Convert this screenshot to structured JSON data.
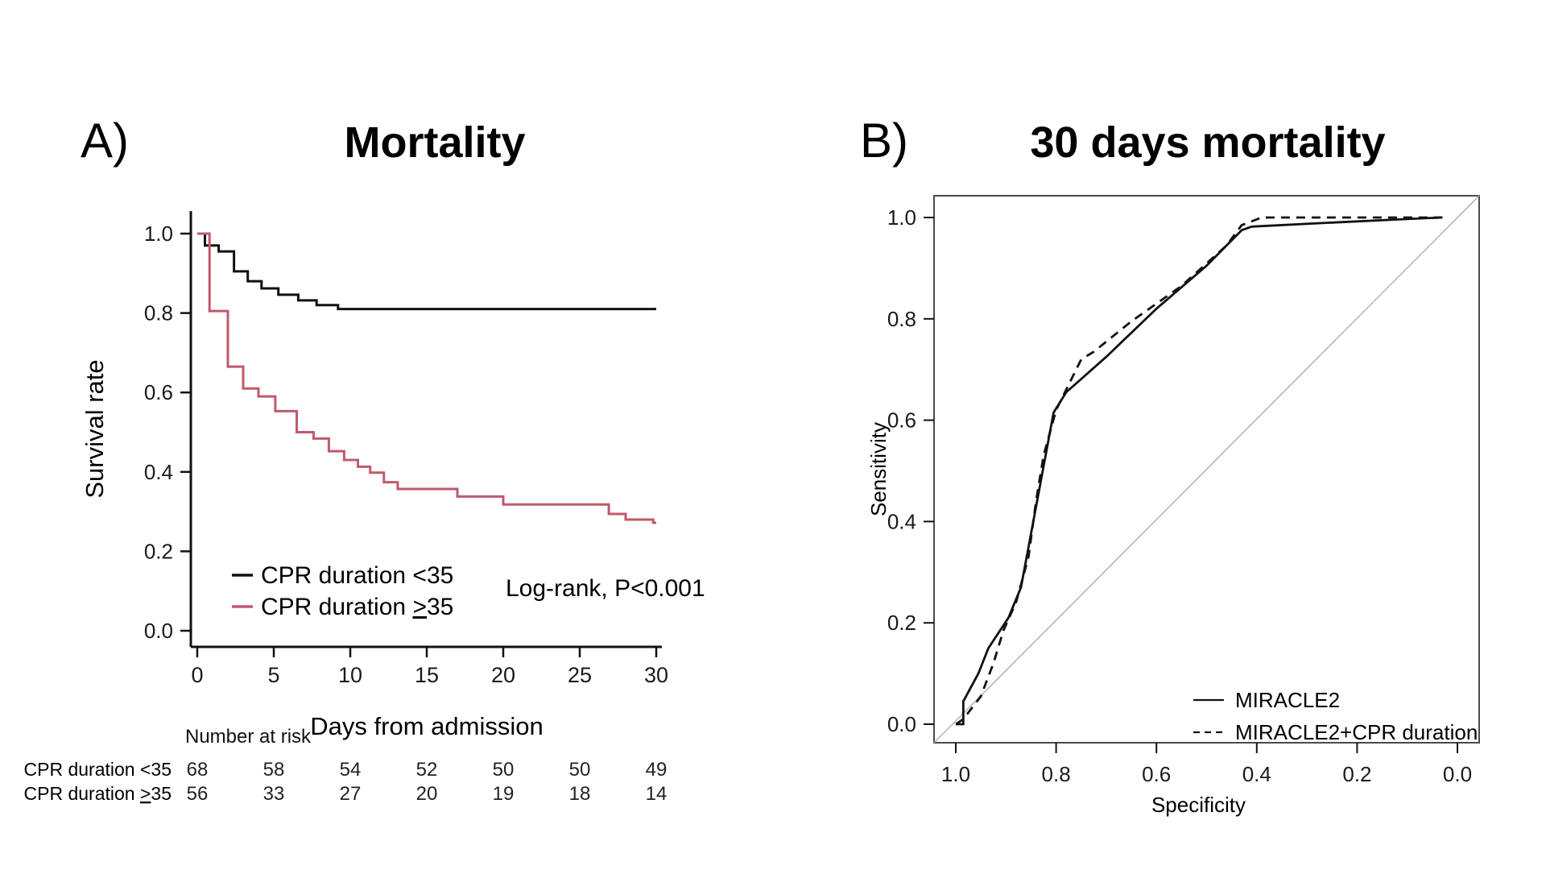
{
  "page": {
    "background": "#ffffff"
  },
  "colors": {
    "black_series": "#111111",
    "pink_series": "#bf5a6d",
    "diagonal": "#b3b3b3",
    "axis": "#111111",
    "box_border": "#4a4a4a",
    "tick_text": "#1a1a1a"
  },
  "chart_data": [
    {
      "type": "line",
      "subtype": "kaplan-meier-step",
      "panel_label": "A)",
      "title": "Mortality",
      "xlabel": "Days from admission",
      "ylabel": "Survival rate",
      "xlim": [
        0,
        30
      ],
      "ylim": [
        0.0,
        1.0
      ],
      "xticks": [
        0,
        5,
        10,
        15,
        20,
        25,
        30
      ],
      "yticks": [
        1.0,
        0.8,
        0.6,
        0.4,
        0.2,
        0.0
      ],
      "grid": false,
      "annotation": "Log-rank, P<0.001",
      "legend_position": "inside-lower-left",
      "series": [
        {
          "name": "CPR duration <35",
          "color": "#111111",
          "dash": "solid",
          "step_points": [
            [
              0,
              1.0
            ],
            [
              0.5,
              0.97
            ],
            [
              1.4,
              0.955
            ],
            [
              2.4,
              0.905
            ],
            [
              3.3,
              0.88
            ],
            [
              4.2,
              0.862
            ],
            [
              5.3,
              0.846
            ],
            [
              6.6,
              0.832
            ],
            [
              7.8,
              0.82
            ],
            [
              9.2,
              0.81
            ],
            [
              30,
              0.81
            ]
          ]
        },
        {
          "name": "CPR duration ≥35",
          "color": "#bf5a6d",
          "dash": "solid",
          "step_points": [
            [
              0,
              1.0
            ],
            [
              0.8,
              0.805
            ],
            [
              2.0,
              0.665
            ],
            [
              3.0,
              0.61
            ],
            [
              4.0,
              0.59
            ],
            [
              5.1,
              0.553
            ],
            [
              6.5,
              0.5
            ],
            [
              7.6,
              0.484
            ],
            [
              8.6,
              0.452
            ],
            [
              9.6,
              0.43
            ],
            [
              10.5,
              0.413
            ],
            [
              11.3,
              0.398
            ],
            [
              12.2,
              0.374
            ],
            [
              13.1,
              0.357
            ],
            [
              17.0,
              0.338
            ],
            [
              20.0,
              0.318
            ],
            [
              26.9,
              0.294
            ],
            [
              28.0,
              0.28
            ],
            [
              29.8,
              0.272
            ],
            [
              30,
              0.272
            ]
          ]
        }
      ],
      "risk_table": {
        "header": "Number at risk",
        "time_points": [
          0,
          5,
          10,
          15,
          20,
          25,
          30
        ],
        "rows": [
          {
            "label": "CPR duration <35",
            "values": [
              68,
              58,
              54,
              52,
              50,
              50,
              49
            ]
          },
          {
            "label": "CPR duration ≥35",
            "values": [
              56,
              33,
              27,
              20,
              19,
              18,
              14
            ]
          }
        ]
      }
    },
    {
      "type": "line",
      "subtype": "roc",
      "panel_label": "B)",
      "title": "30 days mortality",
      "xlabel": "Specificity",
      "ylabel": "Sensitivity",
      "x_reversed": true,
      "xlim": [
        1.0,
        0.0
      ],
      "ylim": [
        0.0,
        1.0
      ],
      "xticks": [
        1.0,
        0.8,
        0.6,
        0.4,
        0.2,
        0.0
      ],
      "yticks": [
        1.0,
        0.8,
        0.6,
        0.4,
        0.2,
        0.0
      ],
      "grid": false,
      "diagonal_reference": true,
      "legend_position": "inside-lower-right",
      "series": [
        {
          "name": "MIRACLE2",
          "color": "#111111",
          "dash": "solid",
          "points": [
            [
              1.0,
              0.0
            ],
            [
              0.985,
              0.0
            ],
            [
              0.985,
              0.045
            ],
            [
              0.955,
              0.1
            ],
            [
              0.935,
              0.15
            ],
            [
              0.895,
              0.21
            ],
            [
              0.87,
              0.27
            ],
            [
              0.805,
              0.615
            ],
            [
              0.78,
              0.655
            ],
            [
              0.7,
              0.725
            ],
            [
              0.6,
              0.82
            ],
            [
              0.5,
              0.905
            ],
            [
              0.43,
              0.975
            ],
            [
              0.41,
              0.982
            ],
            [
              0.25,
              0.99
            ],
            [
              0.1,
              0.997
            ],
            [
              0.03,
              1.0
            ]
          ]
        },
        {
          "name": "MIRACLE2+CPR duration",
          "color": "#111111",
          "dash": "dashed",
          "points": [
            [
              1.0,
              0.0
            ],
            [
              0.985,
              0.01
            ],
            [
              0.95,
              0.055
            ],
            [
              0.925,
              0.12
            ],
            [
              0.905,
              0.185
            ],
            [
              0.88,
              0.24
            ],
            [
              0.855,
              0.33
            ],
            [
              0.84,
              0.44
            ],
            [
              0.825,
              0.53
            ],
            [
              0.8,
              0.62
            ],
            [
              0.77,
              0.68
            ],
            [
              0.75,
              0.72
            ],
            [
              0.725,
              0.735
            ],
            [
              0.65,
              0.795
            ],
            [
              0.55,
              0.865
            ],
            [
              0.46,
              0.945
            ],
            [
              0.43,
              0.985
            ],
            [
              0.39,
              1.0
            ],
            [
              0.03,
              1.0
            ]
          ]
        }
      ]
    }
  ]
}
